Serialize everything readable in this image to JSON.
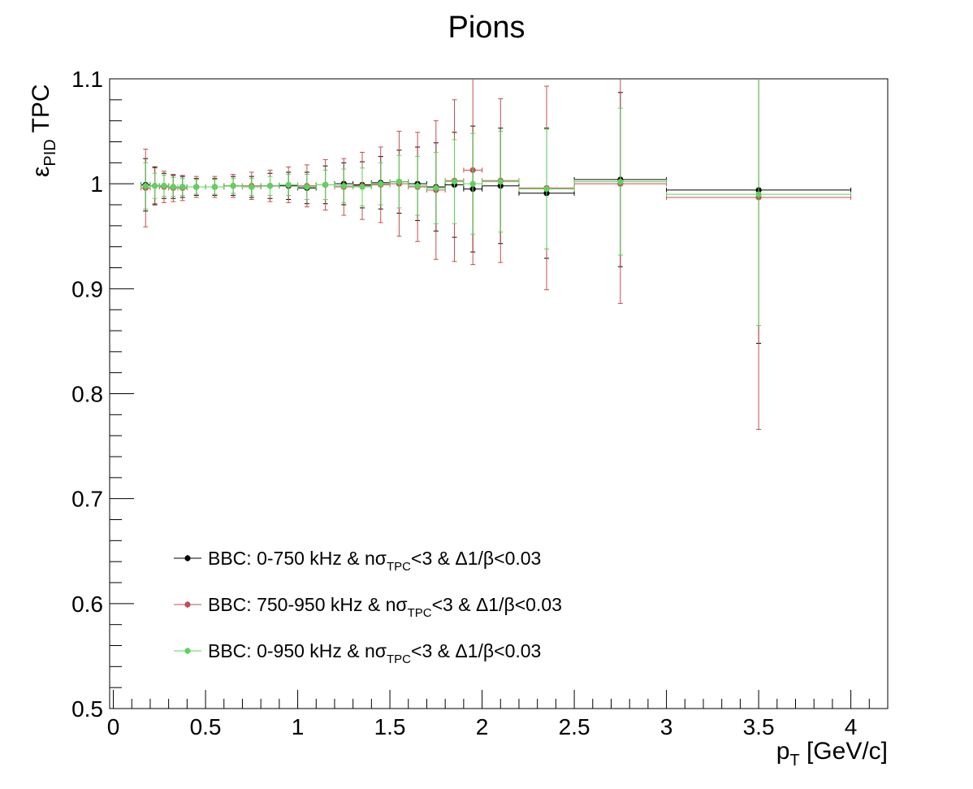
{
  "chart_data": {
    "type": "scatter",
    "title": "Pions",
    "xlabel": {
      "main": "p",
      "sub": "T",
      "rest": " [GeV/c]"
    },
    "ylabel": {
      "main": "ε",
      "sub": "PID",
      "rest": " TPC"
    },
    "xlim": [
      -0.02,
      4.2
    ],
    "ylim": [
      0.5,
      1.1
    ],
    "xticks": [
      {
        "v": 0,
        "label": "0"
      },
      {
        "v": 0.5,
        "label": "0.5"
      },
      {
        "v": 1,
        "label": "1"
      },
      {
        "v": 1.5,
        "label": "1.5"
      },
      {
        "v": 2,
        "label": "2"
      },
      {
        "v": 2.5,
        "label": "2.5"
      },
      {
        "v": 3,
        "label": "3"
      },
      {
        "v": 3.5,
        "label": "3.5"
      },
      {
        "v": 4,
        "label": "4"
      }
    ],
    "yticks": [
      {
        "v": 0.5,
        "label": "0.5"
      },
      {
        "v": 0.6,
        "label": "0.6"
      },
      {
        "v": 0.7,
        "label": "0.7"
      },
      {
        "v": 0.8,
        "label": "0.8"
      },
      {
        "v": 0.9,
        "label": "0.9"
      },
      {
        "v": 1.0,
        "label": "1"
      },
      {
        "v": 1.1,
        "label": "1.1"
      }
    ],
    "grid": false,
    "legend_position": "bottom-left",
    "series": [
      {
        "name": [
          {
            "t": "BBC: 0-750 kHz & nσ"
          },
          {
            "t": "TPC",
            "sub": true
          },
          {
            "t": "<3 & Δ1/β<0.03"
          }
        ],
        "color": "#000000",
        "points": [
          [
            0.175,
            0.025,
            0.999,
            0.025
          ],
          [
            0.225,
            0.025,
            0.998,
            0.018
          ],
          [
            0.275,
            0.025,
            0.998,
            0.012
          ],
          [
            0.325,
            0.025,
            0.997,
            0.011
          ],
          [
            0.375,
            0.025,
            0.997,
            0.01
          ],
          [
            0.45,
            0.05,
            0.997,
            0.008
          ],
          [
            0.55,
            0.05,
            0.997,
            0.008
          ],
          [
            0.65,
            0.05,
            0.998,
            0.009
          ],
          [
            0.75,
            0.05,
            0.997,
            0.01
          ],
          [
            0.85,
            0.05,
            0.998,
            0.012
          ],
          [
            0.95,
            0.05,
            0.998,
            0.013
          ],
          [
            1.05,
            0.05,
            0.996,
            0.015
          ],
          [
            1.15,
            0.05,
            0.999,
            0.018
          ],
          [
            1.25,
            0.05,
            1.0,
            0.02
          ],
          [
            1.35,
            0.05,
            0.999,
            0.022
          ],
          [
            1.45,
            0.05,
            1.001,
            0.025
          ],
          [
            1.55,
            0.05,
            1.002,
            0.03
          ],
          [
            1.65,
            0.05,
            1.0,
            0.035
          ],
          [
            1.75,
            0.05,
            0.997,
            0.042
          ],
          [
            1.85,
            0.05,
            0.999,
            0.05
          ],
          [
            1.95,
            0.05,
            0.995,
            0.06
          ],
          [
            2.1,
            0.1,
            0.998,
            0.055
          ],
          [
            2.35,
            0.15,
            0.991,
            0.062
          ],
          [
            2.75,
            0.25,
            1.004,
            0.083
          ],
          [
            3.5,
            0.5,
            0.994,
            0.146
          ]
        ]
      },
      {
        "name": [
          {
            "t": "BBC: 750-950 kHz & nσ"
          },
          {
            "t": "TPC",
            "sub": true
          },
          {
            "t": "<3 & Δ1/β<0.03"
          }
        ],
        "color": "#c0504d",
        "points": [
          [
            0.175,
            0.025,
            0.996,
            0.037
          ],
          [
            0.225,
            0.025,
            0.998,
            0.017
          ],
          [
            0.275,
            0.025,
            0.997,
            0.015
          ],
          [
            0.325,
            0.025,
            0.996,
            0.013
          ],
          [
            0.375,
            0.025,
            0.996,
            0.012
          ],
          [
            0.45,
            0.05,
            0.997,
            0.01
          ],
          [
            0.55,
            0.05,
            0.997,
            0.01
          ],
          [
            0.65,
            0.05,
            0.998,
            0.011
          ],
          [
            0.75,
            0.05,
            0.998,
            0.013
          ],
          [
            0.85,
            0.05,
            0.998,
            0.015
          ],
          [
            0.95,
            0.05,
            0.999,
            0.017
          ],
          [
            1.05,
            0.05,
            0.998,
            0.02
          ],
          [
            1.15,
            0.05,
            0.999,
            0.024
          ],
          [
            1.25,
            0.05,
            0.997,
            0.027
          ],
          [
            1.35,
            0.05,
            0.998,
            0.032
          ],
          [
            1.45,
            0.05,
            0.999,
            0.036
          ],
          [
            1.55,
            0.05,
            1.0,
            0.05
          ],
          [
            1.65,
            0.05,
            0.997,
            0.052
          ],
          [
            1.75,
            0.05,
            0.994,
            0.066
          ],
          [
            1.85,
            0.05,
            1.003,
            0.077
          ],
          [
            1.95,
            0.05,
            1.013,
            0.09
          ],
          [
            2.1,
            0.1,
            1.003,
            0.078
          ],
          [
            2.35,
            0.15,
            0.996,
            0.097
          ],
          [
            2.75,
            0.25,
            1.0,
            0.114
          ],
          [
            3.5,
            0.5,
            0.987,
            0.221
          ]
        ]
      },
      {
        "name": [
          {
            "t": "BBC: 0-950 kHz & nσ"
          },
          {
            "t": "TPC",
            "sub": true
          },
          {
            "t": "<3 & Δ1/β<0.03"
          }
        ],
        "color": "#5ed25e",
        "points": [
          [
            0.175,
            0.025,
            0.998,
            0.022
          ],
          [
            0.225,
            0.025,
            0.998,
            0.012
          ],
          [
            0.275,
            0.025,
            0.998,
            0.01
          ],
          [
            0.325,
            0.025,
            0.997,
            0.009
          ],
          [
            0.375,
            0.025,
            0.997,
            0.008
          ],
          [
            0.45,
            0.05,
            0.997,
            0.007
          ],
          [
            0.55,
            0.05,
            0.997,
            0.007
          ],
          [
            0.65,
            0.05,
            0.998,
            0.007
          ],
          [
            0.75,
            0.05,
            0.997,
            0.008
          ],
          [
            0.85,
            0.05,
            0.998,
            0.009
          ],
          [
            0.95,
            0.05,
            0.999,
            0.01
          ],
          [
            1.05,
            0.05,
            0.997,
            0.012
          ],
          [
            1.15,
            0.05,
            0.999,
            0.014
          ],
          [
            1.25,
            0.05,
            0.998,
            0.016
          ],
          [
            1.35,
            0.05,
            0.997,
            0.018
          ],
          [
            1.45,
            0.05,
            1.0,
            0.02
          ],
          [
            1.55,
            0.05,
            1.002,
            0.025
          ],
          [
            1.65,
            0.05,
            0.998,
            0.028
          ],
          [
            1.75,
            0.05,
            0.996,
            0.034
          ],
          [
            1.85,
            0.05,
            1.002,
            0.04
          ],
          [
            1.95,
            0.05,
            1.0,
            0.048
          ],
          [
            2.1,
            0.1,
            1.002,
            0.048
          ],
          [
            2.35,
            0.15,
            0.995,
            0.057
          ],
          [
            2.75,
            0.25,
            1.002,
            0.07
          ],
          [
            3.5,
            0.5,
            0.99,
            0.125
          ]
        ]
      }
    ]
  }
}
